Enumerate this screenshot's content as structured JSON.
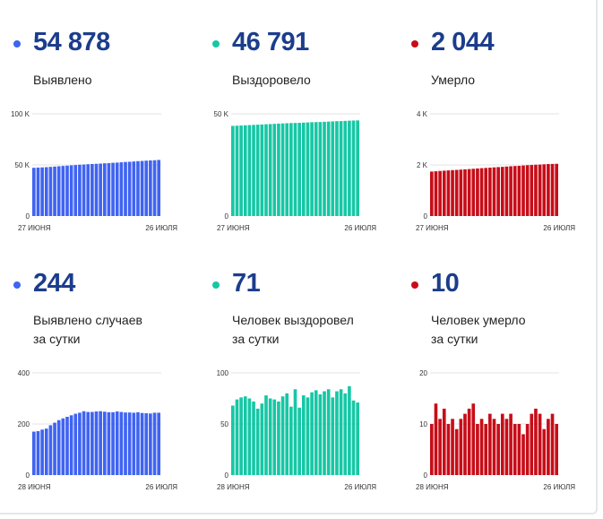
{
  "cards": [
    {
      "id": "total-cases",
      "value": "54 878",
      "label_line1": "Выявлено",
      "label_line2": "",
      "color": "#3f63f2",
      "chart": {
        "type": "bar",
        "ymax": 100000,
        "yticks": [
          "100 K",
          "50 K",
          "0"
        ],
        "x_start": "27 ИЮНЯ",
        "x_end": "26 ИЮЛЯ",
        "values": [
          47200,
          47400,
          47600,
          47800,
          48100,
          48400,
          48700,
          49000,
          49300,
          49600,
          49900,
          50200,
          50400,
          50700,
          50900,
          51100,
          51300,
          51600,
          51800,
          52100,
          52300,
          52600,
          52900,
          53100,
          53400,
          53700,
          53900,
          54200,
          54400,
          54600,
          54878
        ]
      }
    },
    {
      "id": "total-recovered",
      "value": "46 791",
      "label_line1": "Выздоровело",
      "label_line2": "",
      "color": "#16c7a5",
      "chart": {
        "type": "bar",
        "ymax": 50000,
        "yticks": [
          "50 K",
          "0"
        ],
        "x_start": "27 ИЮНЯ",
        "x_end": "26 ИЮЛЯ",
        "values": [
          44100,
          44200,
          44300,
          44400,
          44500,
          44600,
          44700,
          44800,
          44900,
          45000,
          45100,
          45200,
          45300,
          45400,
          45500,
          45550,
          45600,
          45700,
          45800,
          45900,
          45950,
          46000,
          46100,
          46200,
          46300,
          46400,
          46450,
          46550,
          46650,
          46720,
          46791
        ]
      }
    },
    {
      "id": "total-deaths",
      "value": "2 044",
      "label_line1": "Умерло",
      "label_line2": "",
      "color": "#c70d18",
      "chart": {
        "type": "bar",
        "ymax": 4000,
        "yticks": [
          "4 K",
          "2 K",
          "0"
        ],
        "x_start": "27 ИЮНЯ",
        "x_end": "26 ИЮЛЯ",
        "values": [
          1740,
          1752,
          1764,
          1775,
          1785,
          1796,
          1806,
          1817,
          1828,
          1838,
          1850,
          1862,
          1873,
          1883,
          1893,
          1905,
          1915,
          1925,
          1937,
          1948,
          1958,
          1966,
          1978,
          1990,
          1998,
          2008,
          2015,
          2025,
          2034,
          2039,
          2044
        ]
      }
    },
    {
      "id": "daily-cases",
      "value": "244",
      "label_line1": "Выявлено случаев",
      "label_line2": "за сутки",
      "color": "#3f63f2",
      "chart": {
        "type": "bar",
        "ymax": 400,
        "yticks": [
          "400",
          "200",
          "0"
        ],
        "x_start": "28 ИЮНЯ",
        "x_end": "26 ИЮЛЯ",
        "values": [
          170,
          172,
          178,
          182,
          195,
          205,
          215,
          222,
          228,
          234,
          240,
          244,
          250,
          247,
          247,
          249,
          250,
          248,
          246,
          246,
          249,
          247,
          245,
          245,
          244,
          246,
          243,
          242,
          241,
          244,
          244
        ]
      }
    },
    {
      "id": "daily-recovered",
      "value": "71",
      "label_line1": "Человек выздоровел",
      "label_line2": "за сутки",
      "color": "#16c7a5",
      "chart": {
        "type": "bar",
        "ymax": 100,
        "yticks": [
          "100",
          "50",
          "0"
        ],
        "x_start": "28 ИЮНЯ",
        "x_end": "26 ИЮЛЯ",
        "values": [
          68,
          74,
          76,
          77,
          75,
          72,
          65,
          70,
          78,
          75,
          74,
          72,
          77,
          80,
          67,
          84,
          66,
          78,
          76,
          81,
          83,
          79,
          82,
          84,
          76,
          82,
          84,
          80,
          87,
          73,
          71
        ]
      }
    },
    {
      "id": "daily-deaths",
      "value": "10",
      "label_line1": "Человек умерло",
      "label_line2": "за сутки",
      "color": "#c70d18",
      "chart": {
        "type": "bar",
        "ymax": 20,
        "yticks": [
          "20",
          "10",
          "0"
        ],
        "x_start": "28 ИЮНЯ",
        "x_end": "26 ИЮЛЯ",
        "values": [
          10,
          14,
          11,
          13,
          10,
          11,
          9,
          11,
          12,
          13,
          14,
          10,
          11,
          10,
          12,
          11,
          10,
          12,
          11,
          12,
          10,
          10,
          8,
          10,
          12,
          13,
          12,
          9,
          11,
          12,
          10
        ]
      }
    }
  ]
}
